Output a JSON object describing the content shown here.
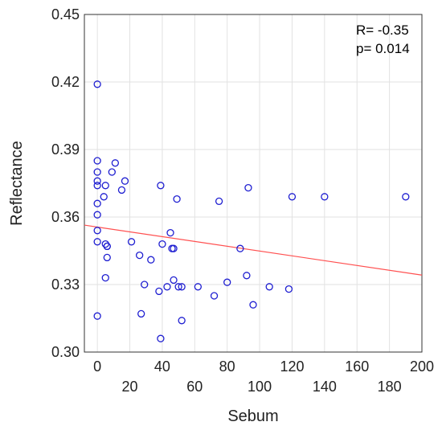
{
  "chart_data": {
    "type": "scatter",
    "title": "",
    "xlabel": "Sebum",
    "ylabel": "Reflectance",
    "xlim": [
      -8,
      200
    ],
    "ylim": [
      0.3,
      0.45
    ],
    "grid": true,
    "x_ticks_lower": [
      "20",
      "60",
      "100",
      "140",
      "180"
    ],
    "x_ticks_upper": [
      "0",
      "40",
      "80",
      "120",
      "160",
      "200"
    ],
    "y_ticks": [
      "0.30",
      "0.33",
      "0.36",
      "0.39",
      "0.42",
      "0.45"
    ],
    "marker_color": "#1f1fd1",
    "fit_color": "#ff5050",
    "annotations": [
      "R= -0.35",
      "p= 0.014"
    ],
    "fit_line": {
      "x": [
        -8,
        200
      ],
      "y": [
        0.3564,
        0.3342
      ]
    },
    "series": [
      {
        "x": [
          0,
          0,
          0,
          0,
          0,
          0,
          0,
          0,
          0,
          0,
          5,
          5,
          6,
          6,
          5,
          6,
          4,
          9,
          11,
          15,
          17,
          21,
          26,
          27,
          29,
          33,
          38,
          39,
          39,
          40,
          43,
          45,
          46,
          47,
          47,
          49,
          50,
          52,
          52,
          62,
          72,
          75,
          80,
          88,
          92,
          93,
          96,
          106,
          118,
          120,
          140,
          190
        ],
        "y": [
          0.419,
          0.385,
          0.38,
          0.376,
          0.366,
          0.361,
          0.354,
          0.349,
          0.316,
          0.374,
          0.374,
          0.348,
          0.347,
          0.342,
          0.333,
          0.347,
          0.369,
          0.38,
          0.384,
          0.372,
          0.376,
          0.349,
          0.343,
          0.317,
          0.33,
          0.341,
          0.327,
          0.306,
          0.374,
          0.348,
          0.329,
          0.353,
          0.346,
          0.332,
          0.346,
          0.368,
          0.329,
          0.314,
          0.329,
          0.329,
          0.325,
          0.367,
          0.331,
          0.346,
          0.334,
          0.373,
          0.321,
          0.329,
          0.328,
          0.369,
          0.369,
          0.369
        ]
      }
    ]
  }
}
